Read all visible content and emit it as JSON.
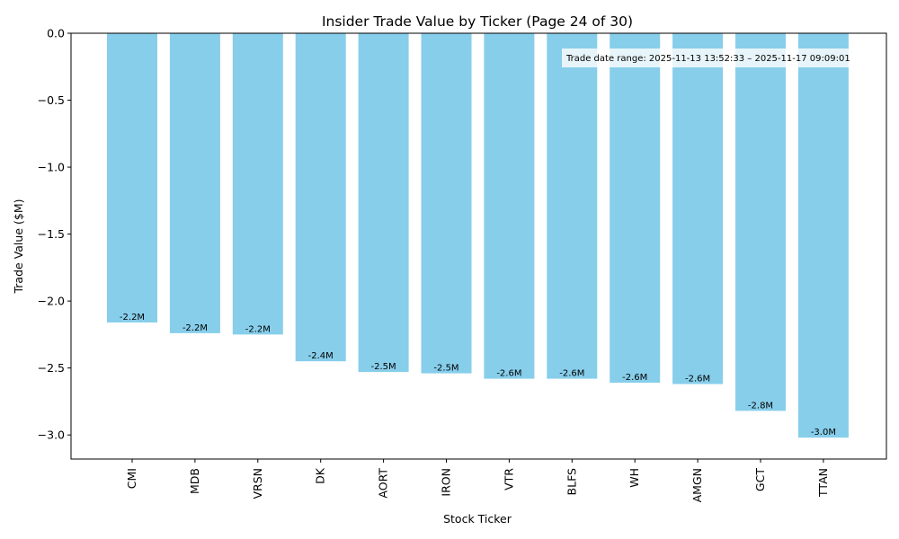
{
  "chart_data": {
    "type": "bar",
    "title": "Insider Trade Value by Ticker (Page 24 of 30)",
    "xlabel": "Stock Ticker",
    "ylabel": "Trade Value ($M)",
    "categories": [
      "CMI",
      "MDB",
      "VRSN",
      "DK",
      "AORT",
      "IRON",
      "VTR",
      "BLFS",
      "WH",
      "AMGN",
      "GCT",
      "TTAN"
    ],
    "values": [
      -2.16,
      -2.24,
      -2.25,
      -2.45,
      -2.53,
      -2.54,
      -2.58,
      -2.58,
      -2.61,
      -2.62,
      -2.82,
      -3.02
    ],
    "data_labels": [
      "-2.2M",
      "-2.2M",
      "-2.2M",
      "-2.4M",
      "-2.5M",
      "-2.5M",
      "-2.6M",
      "-2.6M",
      "-2.6M",
      "-2.6M",
      "-2.8M",
      "-3.0M"
    ],
    "ylim": [
      -3.18,
      0.0
    ],
    "yticks": [
      0.0,
      -0.5,
      -1.0,
      -1.5,
      -2.0,
      -2.5,
      -3.0
    ],
    "ytick_labels": [
      "0.0",
      "−0.5",
      "−1.0",
      "−1.5",
      "−2.0",
      "−2.5",
      "−3.0"
    ],
    "bar_color": "#87CEEB",
    "grid": false,
    "annotation": "Trade date range: 2025-11-13 13:52:33 – 2025-11-17 09:09:01"
  }
}
